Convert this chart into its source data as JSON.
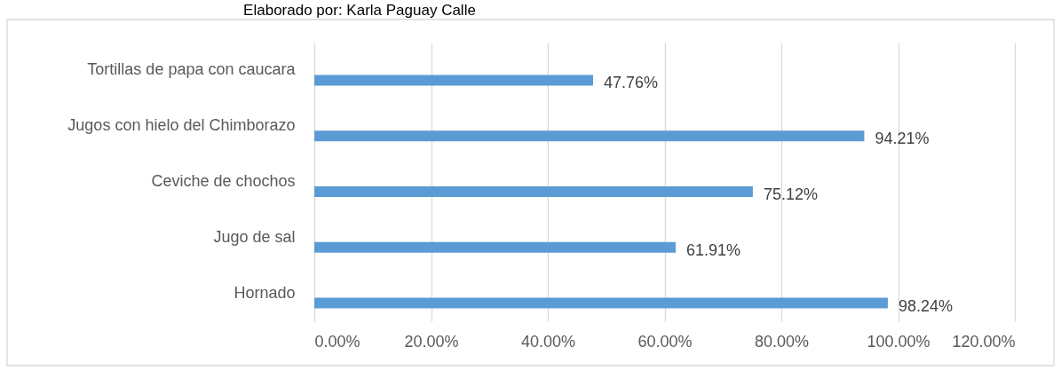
{
  "chart_data": {
    "type": "bar",
    "orientation": "horizontal",
    "categories": [
      "Tortillas de papa con caucara",
      "Jugos con hielo del Chimborazo",
      "Ceviche de chochos",
      "Jugo de sal",
      "Hornado"
    ],
    "values": [
      47.76,
      94.21,
      75.12,
      61.91,
      98.24
    ],
    "value_labels": [
      "47.76%",
      "94.21%",
      "75.12%",
      "61.91%",
      "98.24%"
    ],
    "color": "#5b9bd5",
    "xlim": [
      0,
      120
    ],
    "xticks": [
      {
        "value": 0,
        "label": "0.00%"
      },
      {
        "value": 20,
        "label": "20.00%"
      },
      {
        "value": 40,
        "label": "40.00%"
      },
      {
        "value": 60,
        "label": "60.00%"
      },
      {
        "value": 80,
        "label": "80.00%"
      },
      {
        "value": 100,
        "label": "100.00%"
      },
      {
        "value": 120,
        "label": "120.00%"
      }
    ],
    "grid": "x",
    "annotations": [
      "Elaborado por: Karla Paguay Calle"
    ]
  }
}
